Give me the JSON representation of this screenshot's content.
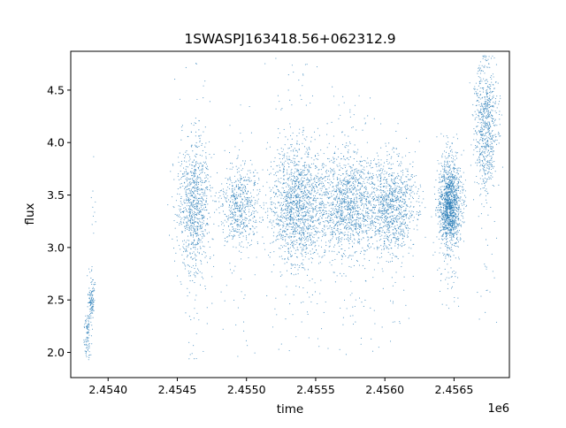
{
  "chart_data": {
    "type": "scatter",
    "title": "1SWASPJ163418.56+062312.9",
    "xlabel": "time",
    "ylabel": "flux",
    "x_offset_label": "1e6",
    "xlim": [
      2.45373,
      2.4569
    ],
    "ylim": [
      1.76,
      4.87
    ],
    "x_ticks": [
      2.454,
      2.4545,
      2.455,
      2.4555,
      2.456,
      2.4565
    ],
    "x_tick_labels": [
      "2.4540",
      "2.4545",
      "2.4550",
      "2.4555",
      "2.4560",
      "2.4565"
    ],
    "y_ticks": [
      2.0,
      2.5,
      3.0,
      3.5,
      4.0,
      4.5
    ],
    "y_tick_labels": [
      "2.0",
      "2.5",
      "3.0",
      "3.5",
      "4.0",
      "4.5"
    ],
    "grid": false,
    "marker_color": "#1f77b4",
    "clusters": [
      {
        "x_center": 2.45385,
        "x_width": 1.2e-05,
        "y_center": 2.15,
        "y_spread": 0.12,
        "y_min": 1.93,
        "y_max": 2.36,
        "n": 90
      },
      {
        "x_center": 2.45388,
        "x_width": 1.2e-05,
        "y_center": 2.5,
        "y_spread": 0.1,
        "y_min": 2.22,
        "y_max": 2.82,
        "n": 120
      },
      {
        "x_center": 2.4539,
        "x_width": 1e-05,
        "y_center": 3.4,
        "y_spread": 0.2,
        "y_min": 3.1,
        "y_max": 3.94,
        "n": 10
      },
      {
        "x_center": 2.45462,
        "x_width": 6e-05,
        "y_center": 3.4,
        "y_spread": 0.3,
        "y_min": 1.93,
        "y_max": 4.79,
        "n": 900
      },
      {
        "x_center": 2.45495,
        "x_width": 7e-05,
        "y_center": 3.38,
        "y_spread": 0.2,
        "y_min": 1.93,
        "y_max": 4.65,
        "n": 600
      },
      {
        "x_center": 2.45537,
        "x_width": 0.0001,
        "y_center": 3.4,
        "y_spread": 0.28,
        "y_min": 1.93,
        "y_max": 4.83,
        "n": 1500
      },
      {
        "x_center": 2.45574,
        "x_width": 0.00011,
        "y_center": 3.4,
        "y_spread": 0.24,
        "y_min": 1.95,
        "y_max": 4.52,
        "n": 1300
      },
      {
        "x_center": 2.45605,
        "x_width": 8e-05,
        "y_center": 3.38,
        "y_spread": 0.22,
        "y_min": 1.93,
        "y_max": 4.25,
        "n": 1000
      },
      {
        "x_center": 2.45647,
        "x_width": 4e-05,
        "y_center": 3.4,
        "y_spread": 0.2,
        "y_min": 2.4,
        "y_max": 4.1,
        "n": 1400
      },
      {
        "x_center": 2.45673,
        "x_width": 4e-05,
        "y_center": 4.15,
        "y_spread": 0.3,
        "y_min": 2.18,
        "y_max": 4.83,
        "n": 700
      }
    ]
  }
}
